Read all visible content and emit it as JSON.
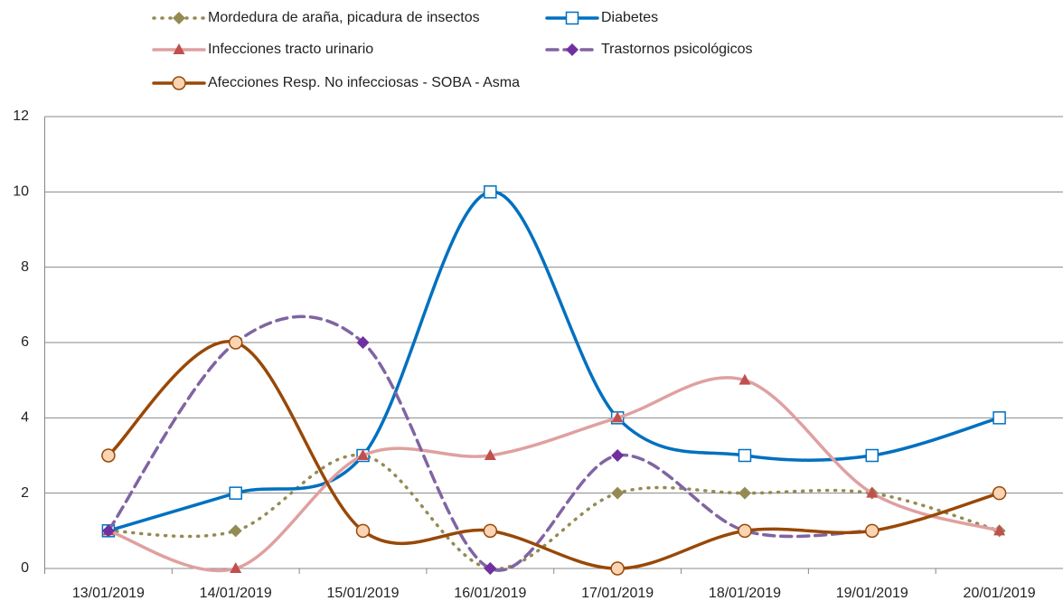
{
  "chart_data": {
    "type": "line",
    "categories": [
      "13/01/2019",
      "14/01/2019",
      "15/01/2019",
      "16/01/2019",
      "17/01/2019",
      "18/01/2019",
      "19/01/2019",
      "20/01/2019"
    ],
    "series": [
      {
        "name": "Mordedura de araña, picadura de insectos",
        "color": "#948a54",
        "line_color": "#948a54",
        "marker": "diamond",
        "line_style": "dotted",
        "values": [
          1,
          1,
          3,
          0,
          2,
          2,
          2,
          1
        ]
      },
      {
        "name": "Diabetes",
        "color": "#0070c0",
        "line_color": "#0070c0",
        "marker": "square",
        "line_style": "solid",
        "values": [
          1,
          2,
          3,
          10,
          4,
          3,
          3,
          4
        ]
      },
      {
        "name": "Infecciones tracto urinario",
        "color": "#c0504d",
        "line_color": "#e0a0a0",
        "marker": "triangle",
        "line_style": "solid",
        "values": [
          1,
          0,
          3,
          3,
          4,
          5,
          2,
          1
        ]
      },
      {
        "name": "Trastornos psicológicos",
        "color": "#7030a0",
        "line_color": "#8064a2",
        "marker": "diamond",
        "line_style": "dashed",
        "values": [
          1,
          6,
          6,
          0,
          3,
          1,
          1,
          null
        ]
      },
      {
        "name": "Afecciones Resp. No infecciosas - SOBA - Asma",
        "color": "#984807",
        "line_color": "#984807",
        "marker": "circle",
        "line_style": "solid",
        "values": [
          3,
          6,
          1,
          1,
          0,
          1,
          1,
          2
        ]
      }
    ],
    "ylim": [
      0,
      12
    ],
    "yticks": [
      0,
      2,
      4,
      6,
      8,
      10,
      12
    ],
    "grid": true,
    "smooth": true,
    "legend": "top"
  }
}
